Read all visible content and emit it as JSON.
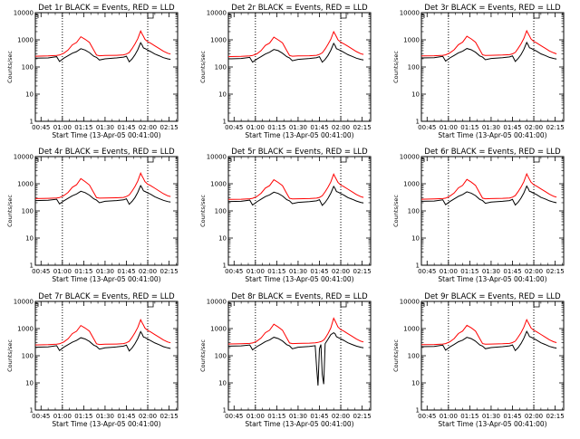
{
  "chart_data": {
    "type": "line",
    "scale": "log",
    "ylim": [
      1,
      10000
    ],
    "yticks": [
      "1",
      "10",
      "100",
      "1000",
      "10000"
    ],
    "xlim": [
      "00:41:00",
      "02:21:00"
    ],
    "xticks": [
      "00:45",
      "01:00",
      "01:15",
      "01:30",
      "01:45",
      "02:00",
      "02:15"
    ],
    "xlabel": "Start Time (13-Apr-05 00:41:00)",
    "ylabel": "Counts/sec",
    "vlines": [
      "01:00",
      "02:00"
    ],
    "colors": {
      "events": "#000000",
      "lld": "#ff0000"
    },
    "panels": [
      {
        "title": "Det 1r BLACK = Events, RED = LLD",
        "x": [
          "00:41",
          "00:50",
          "00:56",
          "00:58",
          "01:01",
          "01:04",
          "01:07",
          "01:10",
          "01:13",
          "01:16",
          "01:19",
          "01:22",
          "01:24",
          "01:26",
          "01:30",
          "01:38",
          "01:43",
          "01:45",
          "01:47",
          "01:49",
          "01:51",
          "01:53",
          "01:55",
          "01:56",
          "01:57",
          "01:58",
          "02:00",
          "02:02",
          "02:05",
          "02:08",
          "02:11",
          "02:14",
          "02:16"
        ],
        "events": [
          210,
          215,
          240,
          160,
          210,
          260,
          320,
          370,
          470,
          420,
          340,
          250,
          225,
          180,
          200,
          215,
          230,
          250,
          155,
          200,
          280,
          430,
          780,
          640,
          500,
          480,
          420,
          370,
          300,
          260,
          220,
          200,
          190
        ],
        "lld": [
          250,
          255,
          265,
          275,
          320,
          420,
          650,
          800,
          1300,
          1050,
          800,
          420,
          275,
          260,
          265,
          270,
          280,
          300,
          340,
          480,
          700,
          1100,
          2100,
          1650,
          1350,
          1050,
          850,
          750,
          600,
          480,
          380,
          320,
          300
        ]
      },
      {
        "title": "Det 2r BLACK = Events, RED = LLD",
        "x": [
          "00:41",
          "00:50",
          "00:56",
          "00:58",
          "01:01",
          "01:04",
          "01:07",
          "01:10",
          "01:13",
          "01:16",
          "01:19",
          "01:22",
          "01:24",
          "01:26",
          "01:30",
          "01:38",
          "01:43",
          "01:45",
          "01:47",
          "01:49",
          "01:51",
          "01:53",
          "01:55",
          "01:56",
          "01:57",
          "01:58",
          "02:00",
          "02:02",
          "02:05",
          "02:08",
          "02:11",
          "02:14",
          "02:16"
        ],
        "events": [
          200,
          205,
          225,
          150,
          195,
          240,
          300,
          350,
          440,
          400,
          320,
          240,
          215,
          170,
          190,
          205,
          220,
          240,
          150,
          190,
          265,
          410,
          740,
          610,
          470,
          450,
          400,
          350,
          285,
          245,
          210,
          190,
          180
        ],
        "lld": [
          240,
          245,
          255,
          265,
          305,
          400,
          620,
          760,
          1250,
          1000,
          770,
          400,
          265,
          250,
          255,
          260,
          270,
          290,
          330,
          460,
          680,
          1050,
          2000,
          1600,
          1300,
          1000,
          820,
          720,
          580,
          460,
          370,
          310,
          290
        ]
      },
      {
        "title": "Det 3r BLACK = Events, RED = LLD",
        "x": [
          "00:41",
          "00:50",
          "00:56",
          "00:58",
          "01:01",
          "01:04",
          "01:07",
          "01:10",
          "01:13",
          "01:16",
          "01:19",
          "01:22",
          "01:24",
          "01:26",
          "01:30",
          "01:38",
          "01:43",
          "01:45",
          "01:47",
          "01:49",
          "01:51",
          "01:53",
          "01:55",
          "01:56",
          "01:57",
          "01:58",
          "02:00",
          "02:02",
          "02:05",
          "02:08",
          "02:11",
          "02:14",
          "02:16"
        ],
        "events": [
          215,
          220,
          245,
          165,
          215,
          265,
          330,
          380,
          480,
          430,
          350,
          255,
          230,
          185,
          205,
          220,
          235,
          255,
          160,
          205,
          285,
          440,
          800,
          650,
          510,
          490,
          430,
          380,
          305,
          265,
          225,
          205,
          195
        ],
        "lld": [
          255,
          260,
          270,
          280,
          330,
          430,
          660,
          820,
          1350,
          1080,
          820,
          430,
          280,
          265,
          270,
          275,
          285,
          305,
          345,
          490,
          710,
          1120,
          2150,
          1700,
          1380,
          1080,
          870,
          770,
          610,
          490,
          390,
          330,
          305
        ]
      },
      {
        "title": "Det 4r BLACK = Events, RED = LLD",
        "x": [
          "00:41",
          "00:50",
          "00:56",
          "00:58",
          "01:01",
          "01:04",
          "01:07",
          "01:10",
          "01:13",
          "01:16",
          "01:19",
          "01:22",
          "01:24",
          "01:26",
          "01:30",
          "01:38",
          "01:43",
          "01:45",
          "01:47",
          "01:49",
          "01:51",
          "01:53",
          "01:55",
          "01:56",
          "01:57",
          "01:58",
          "02:00",
          "02:02",
          "02:05",
          "02:08",
          "02:11",
          "02:14",
          "02:16"
        ],
        "events": [
          240,
          245,
          270,
          180,
          235,
          290,
          360,
          420,
          530,
          470,
          380,
          280,
          250,
          200,
          225,
          240,
          255,
          280,
          175,
          225,
          310,
          480,
          850,
          700,
          550,
          520,
          460,
          410,
          330,
          285,
          245,
          220,
          210
        ],
        "lld": [
          285,
          290,
          300,
          310,
          365,
          480,
          740,
          920,
          1550,
          1200,
          900,
          470,
          310,
          295,
          300,
          305,
          315,
          340,
          385,
          540,
          790,
          1250,
          2450,
          1900,
          1550,
          1200,
          960,
          850,
          680,
          540,
          430,
          360,
          340
        ]
      },
      {
        "title": "Det 5r BLACK = Events, RED = LLD",
        "x": [
          "00:41",
          "00:50",
          "00:56",
          "00:58",
          "01:01",
          "01:04",
          "01:07",
          "01:10",
          "01:13",
          "01:16",
          "01:19",
          "01:22",
          "01:24",
          "01:26",
          "01:30",
          "01:38",
          "01:43",
          "01:45",
          "01:47",
          "01:49",
          "01:51",
          "01:53",
          "01:55",
          "01:56",
          "01:57",
          "01:58",
          "02:00",
          "02:02",
          "02:05",
          "02:08",
          "02:11",
          "02:14",
          "02:16"
        ],
        "events": [
          220,
          225,
          250,
          165,
          215,
          270,
          335,
          390,
          490,
          440,
          355,
          260,
          235,
          185,
          205,
          220,
          235,
          260,
          160,
          205,
          290,
          445,
          800,
          660,
          515,
          495,
          435,
          385,
          310,
          270,
          230,
          205,
          195
        ],
        "lld": [
          265,
          270,
          280,
          290,
          340,
          445,
          690,
          850,
          1400,
          1120,
          850,
          440,
          290,
          275,
          280,
          285,
          295,
          315,
          360,
          505,
          740,
          1160,
          2250,
          1760,
          1420,
          1120,
          900,
          790,
          630,
          505,
          400,
          335,
          315
        ]
      },
      {
        "title": "Det 6r BLACK = Events, RED = LLD",
        "x": [
          "00:41",
          "00:50",
          "00:56",
          "00:58",
          "01:01",
          "01:04",
          "01:07",
          "01:10",
          "01:13",
          "01:16",
          "01:19",
          "01:22",
          "01:24",
          "01:26",
          "01:30",
          "01:38",
          "01:43",
          "01:45",
          "01:47",
          "01:49",
          "01:51",
          "01:53",
          "01:55",
          "01:56",
          "01:57",
          "01:58",
          "02:00",
          "02:02",
          "02:05",
          "02:08",
          "02:11",
          "02:14",
          "02:16"
        ],
        "events": [
          225,
          230,
          255,
          170,
          220,
          275,
          345,
          400,
          505,
          450,
          365,
          265,
          240,
          190,
          210,
          225,
          240,
          265,
          165,
          210,
          295,
          455,
          820,
          670,
          525,
          505,
          445,
          395,
          315,
          275,
          235,
          210,
          200
        ],
        "lld": [
          270,
          275,
          285,
          295,
          350,
          455,
          700,
          870,
          1450,
          1150,
          870,
          450,
          295,
          280,
          285,
          290,
          300,
          320,
          365,
          515,
          750,
          1180,
          2300,
          1800,
          1450,
          1150,
          920,
          810,
          645,
          515,
          410,
          345,
          320
        ]
      },
      {
        "title": "Det 7r BLACK = Events, RED = LLD",
        "x": [
          "00:41",
          "00:50",
          "00:56",
          "00:58",
          "01:01",
          "01:04",
          "01:07",
          "01:10",
          "01:13",
          "01:16",
          "01:19",
          "01:22",
          "01:24",
          "01:26",
          "01:30",
          "01:38",
          "01:43",
          "01:45",
          "01:47",
          "01:49",
          "01:51",
          "01:53",
          "01:55",
          "01:56",
          "01:57",
          "01:58",
          "02:00",
          "02:02",
          "02:05",
          "02:08",
          "02:11",
          "02:14",
          "02:16"
        ],
        "events": [
          205,
          210,
          235,
          155,
          205,
          255,
          315,
          365,
          460,
          415,
          335,
          245,
          220,
          175,
          195,
          210,
          225,
          245,
          150,
          195,
          275,
          425,
          770,
          630,
          490,
          470,
          410,
          360,
          295,
          255,
          215,
          195,
          185
        ],
        "lld": [
          250,
          255,
          265,
          275,
          320,
          420,
          650,
          800,
          1300,
          1050,
          800,
          420,
          275,
          260,
          265,
          270,
          280,
          300,
          340,
          480,
          700,
          1100,
          2100,
          1650,
          1350,
          1050,
          850,
          750,
          600,
          480,
          380,
          320,
          300
        ]
      },
      {
        "title": "Det 8r BLACK = Events, RED = LLD",
        "x": [
          "00:41",
          "00:50",
          "00:56",
          "00:58",
          "01:01",
          "01:04",
          "01:07",
          "01:10",
          "01:13",
          "01:16",
          "01:19",
          "01:22",
          "01:24",
          "01:26",
          "01:30",
          "01:38",
          "01:42",
          "01:43",
          "01:44",
          "01:45",
          "01:46",
          "01:47",
          "01:48",
          "01:49",
          "01:51",
          "01:53",
          "01:55",
          "01:56",
          "01:57",
          "01:58",
          "02:00",
          "02:02",
          "02:05",
          "02:08",
          "02:11",
          "02:14",
          "02:16"
        ],
        "events": [
          225,
          230,
          250,
          165,
          215,
          265,
          330,
          380,
          480,
          430,
          350,
          255,
          230,
          180,
          205,
          220,
          235,
          40,
          8,
          180,
          260,
          20,
          9,
          280,
          400,
          600,
          700,
          640,
          500,
          470,
          420,
          370,
          300,
          260,
          225,
          205,
          195
        ],
        "lld": [
          270,
          275,
          285,
          295,
          345,
          450,
          700,
          870,
          1450,
          1150,
          870,
          450,
          295,
          280,
          285,
          290,
          300,
          305,
          310,
          320,
          330,
          350,
          380,
          440,
          650,
          1050,
          2400,
          1900,
          1500,
          1150,
          920,
          810,
          645,
          515,
          410,
          345,
          320
        ]
      },
      {
        "title": "Det 9r BLACK = Events, RED = LLD",
        "x": [
          "00:41",
          "00:50",
          "00:56",
          "00:58",
          "01:01",
          "01:04",
          "01:07",
          "01:10",
          "01:13",
          "01:16",
          "01:19",
          "01:22",
          "01:24",
          "01:26",
          "01:30",
          "01:38",
          "01:43",
          "01:45",
          "01:47",
          "01:49",
          "01:51",
          "01:53",
          "01:55",
          "01:56",
          "01:57",
          "01:58",
          "02:00",
          "02:02",
          "02:05",
          "02:08",
          "02:11",
          "02:14",
          "02:16"
        ],
        "events": [
          215,
          220,
          245,
          160,
          210,
          260,
          325,
          375,
          475,
          425,
          345,
          250,
          225,
          180,
          200,
          215,
          230,
          250,
          155,
          200,
          280,
          435,
          790,
          645,
          505,
          485,
          425,
          375,
          300,
          260,
          220,
          200,
          190
        ],
        "lld": [
          255,
          260,
          270,
          280,
          325,
          425,
          655,
          810,
          1320,
          1060,
          810,
          425,
          280,
          265,
          270,
          275,
          285,
          305,
          345,
          485,
          705,
          1110,
          2120,
          1670,
          1360,
          1060,
          860,
          760,
          605,
          485,
          385,
          325,
          305
        ]
      }
    ]
  }
}
